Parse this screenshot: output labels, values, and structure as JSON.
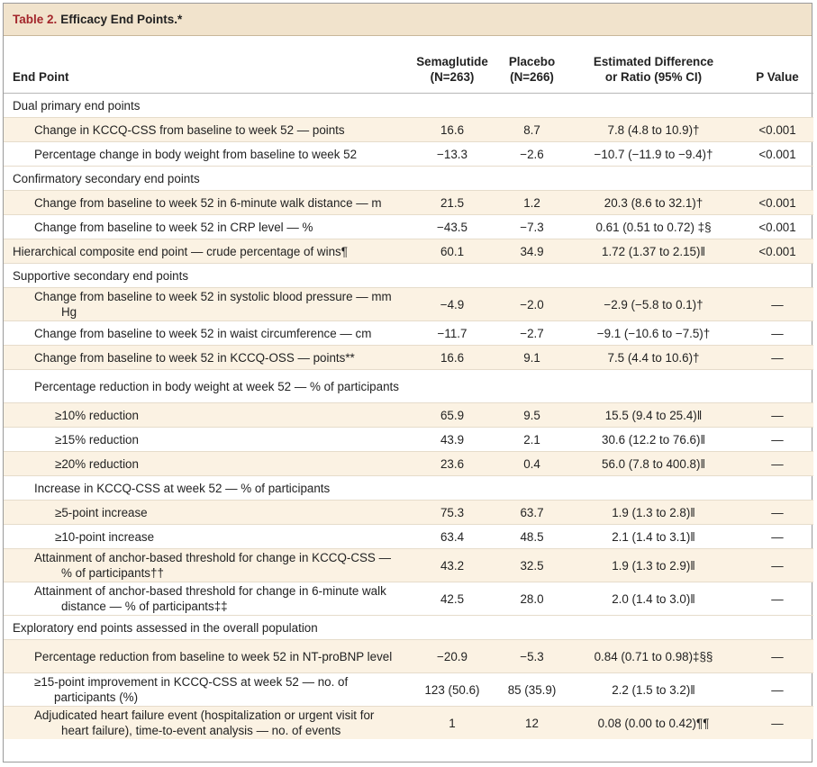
{
  "title": {
    "label": "Table 2.",
    "text": "Efficacy End Points.*"
  },
  "header": {
    "end_point": "End Point",
    "sema_line1": "Semaglutide",
    "sema_line2": "(N=263)",
    "placebo_line1": "Placebo",
    "placebo_line2": "(N=266)",
    "diff_line1": "Estimated Difference",
    "diff_line2": "or Ratio (95% CI)",
    "p": "P Value"
  },
  "rows": [
    {
      "label": "Dual primary end points",
      "sema": "",
      "placebo": "",
      "diff": "",
      "p": ""
    },
    {
      "label": "Change in KCCQ-CSS from baseline to week 52 — points",
      "sema": "16.6",
      "placebo": "8.7",
      "diff": "7.8 (4.8 to 10.9)†",
      "p": "<0.001"
    },
    {
      "label": "Percentage change in body weight from baseline to week 52",
      "sema": "−13.3",
      "placebo": "−2.6",
      "diff": "−10.7 (−11.9 to −9.4)†",
      "p": "<0.001"
    },
    {
      "label": "Confirmatory secondary end points",
      "sema": "",
      "placebo": "",
      "diff": "",
      "p": ""
    },
    {
      "label": "Change from baseline to week 52 in 6-minute walk distance — m",
      "sema": "21.5",
      "placebo": "1.2",
      "diff": "20.3 (8.6 to 32.1)†",
      "p": "<0.001"
    },
    {
      "label": "Change from baseline to week 52 in CRP level — %",
      "sema": "−43.5",
      "placebo": "−7.3",
      "diff": "0.61 (0.51 to 0.72) ‡§",
      "p": "<0.001"
    },
    {
      "label": "Hierarchical composite end point — crude percentage of wins¶",
      "sema": "60.1",
      "placebo": "34.9",
      "diff": "1.72 (1.37 to 2.15)‖",
      "p": "<0.001"
    },
    {
      "label": "Supportive secondary end points",
      "sema": "",
      "placebo": "",
      "diff": "",
      "p": ""
    },
    {
      "label": "Change from baseline to week 52 in systolic blood pressure — mm Hg",
      "sema": "−4.9",
      "placebo": "−2.0",
      "diff": "−2.9 (−5.8 to 0.1)†",
      "p": "—"
    },
    {
      "label": "Change from baseline to week 52 in waist circumference — cm",
      "sema": "−11.7",
      "placebo": "−2.7",
      "diff": "−9.1 (−10.6 to −7.5)†",
      "p": "—"
    },
    {
      "label": "Change from baseline to week 52 in KCCQ-OSS — points**",
      "sema": "16.6",
      "placebo": "9.1",
      "diff": "7.5 (4.4 to 10.6)†",
      "p": "—"
    },
    {
      "label": "Percentage reduction in body weight at week 52 — % of participants",
      "sema": "",
      "placebo": "",
      "diff": "",
      "p": ""
    },
    {
      "label": "≥10% reduction",
      "sema": "65.9",
      "placebo": "9.5",
      "diff": "15.5 (9.4 to 25.4)‖",
      "p": "—"
    },
    {
      "label": "≥15% reduction",
      "sema": "43.9",
      "placebo": "2.1",
      "diff": "30.6 (12.2 to 76.6)‖",
      "p": "—"
    },
    {
      "label": "≥20% reduction",
      "sema": "23.6",
      "placebo": "0.4",
      "diff": "56.0 (7.8 to 400.8)‖",
      "p": "—"
    },
    {
      "label": "Increase in KCCQ-CSS at week 52 — % of participants",
      "sema": "",
      "placebo": "",
      "diff": "",
      "p": ""
    },
    {
      "label": "≥5-point increase",
      "sema": "75.3",
      "placebo": "63.7",
      "diff": "1.9 (1.3 to 2.8)‖",
      "p": "—"
    },
    {
      "label": "≥10-point increase",
      "sema": "63.4",
      "placebo": "48.5",
      "diff": "2.1 (1.4 to 3.1)‖",
      "p": "—"
    },
    {
      "label": "Attainment of anchor-based threshold for change in KCCQ-CSS — % of participants††",
      "sema": "43.2",
      "placebo": "32.5",
      "diff": "1.9 (1.3 to 2.9)‖",
      "p": "—"
    },
    {
      "label": "Attainment of anchor-based threshold for change in 6-minute walk distance — % of participants‡‡",
      "sema": "42.5",
      "placebo": "28.0",
      "diff": "2.0 (1.4 to 3.0)‖",
      "p": "—"
    },
    {
      "label": "Exploratory end points assessed in the overall population",
      "sema": "",
      "placebo": "",
      "diff": "",
      "p": ""
    },
    {
      "label": "Percentage reduction from baseline to week 52 in NT-proBNP level",
      "sema": "−20.9",
      "placebo": "−5.3",
      "diff": "0.84 (0.71 to 0.98)‡§§",
      "p": "—"
    },
    {
      "label": "≥15-point improvement in KCCQ-CSS at week 52 — no. of participants (%)",
      "sema": "123 (50.6)",
      "placebo": "85 (35.9)",
      "diff": "2.2 (1.5 to 3.2)‖",
      "p": "—"
    },
    {
      "label": "Adjudicated heart failure event (hospitalization or urgent visit for heart failure), time-to-event analysis — no. of events",
      "sema": "1",
      "placebo": "12",
      "diff": "0.08 (0.00 to 0.42)¶¶",
      "p": "—"
    }
  ]
}
